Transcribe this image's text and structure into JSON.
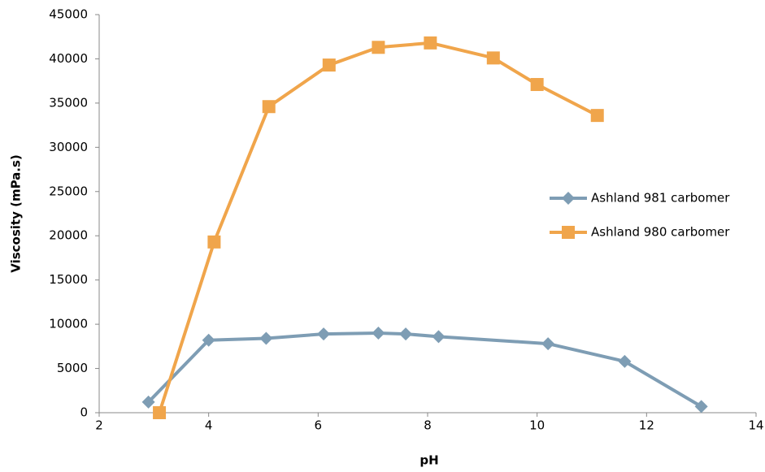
{
  "chart_data": {
    "type": "line",
    "x_label": "pH",
    "y_label": "Viscosity (mPa.s)",
    "xlim": [
      2,
      14
    ],
    "xticks": [
      2,
      4,
      6,
      8,
      10,
      12,
      14
    ],
    "ylim": [
      0,
      45000
    ],
    "yticks": [
      0,
      5000,
      10000,
      15000,
      20000,
      25000,
      30000,
      35000,
      40000,
      45000
    ],
    "grid": false,
    "legend": "right",
    "series": [
      {
        "name": "Ashland 981 carbomer",
        "color": "#7e9db4",
        "marker": "diamond",
        "x": [
          2.9,
          4.0,
          5.05,
          6.1,
          7.1,
          7.6,
          8.2,
          10.2,
          11.6,
          13.0
        ],
        "values": [
          1200,
          8200,
          8400,
          8900,
          9000,
          8900,
          8600,
          7800,
          5800,
          700
        ]
      },
      {
        "name": "Ashland 980 carbomer",
        "color": "#f0a54b",
        "marker": "square",
        "x": [
          3.1,
          4.1,
          5.1,
          6.2,
          7.1,
          8.05,
          9.2,
          10.0,
          11.1
        ],
        "values": [
          0,
          19300,
          34600,
          39300,
          41300,
          41800,
          40100,
          37100,
          33600
        ]
      }
    ]
  }
}
